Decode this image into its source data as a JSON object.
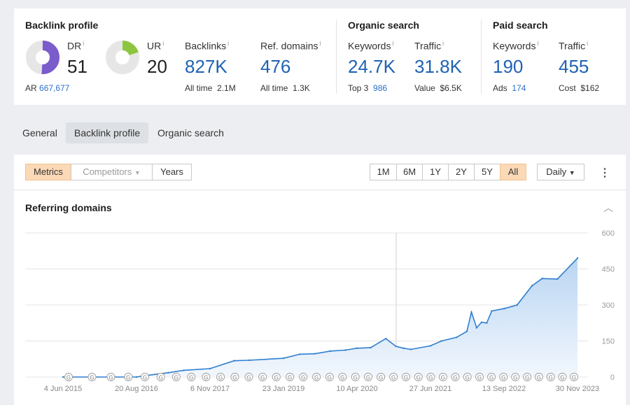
{
  "metrics": {
    "backlink_profile": {
      "title": "Backlink profile",
      "dr": {
        "label": "DR",
        "info": "i",
        "value": "51"
      },
      "ur": {
        "label": "UR",
        "info": "i",
        "value": "20"
      },
      "ar": {
        "label": "AR",
        "value": "667,677"
      },
      "backlinks": {
        "label": "Backlinks",
        "info": "i",
        "value": "827K",
        "sub_label": "All time",
        "sub_value": "2.1M"
      },
      "ref_domains": {
        "label": "Ref. domains",
        "info": "i",
        "value": "476",
        "sub_label": "All time",
        "sub_value": "1.3K"
      }
    },
    "organic_search": {
      "title": "Organic search",
      "keywords": {
        "label": "Keywords",
        "info": "i",
        "value": "24.7K",
        "sub_label": "Top 3",
        "sub_value": "986"
      },
      "traffic": {
        "label": "Traffic",
        "info": "i",
        "value": "31.8K",
        "sub_label": "Value",
        "sub_value": "$6.5K"
      }
    },
    "paid_search": {
      "title": "Paid search",
      "keywords": {
        "label": "Keywords",
        "info": "i",
        "value": "190",
        "sub_label": "Ads",
        "sub_value": "174"
      },
      "traffic": {
        "label": "Traffic",
        "info": "i",
        "value": "455",
        "sub_label": "Cost",
        "sub_value": "$162"
      }
    }
  },
  "donuts": {
    "dr_fraction": 0.51,
    "ur_fraction": 0.2,
    "dr_color": "#7a5ccc",
    "ur_color": "#8cc63f",
    "track_color": "#e6e6e6"
  },
  "tabs": [
    "General",
    "Backlink profile",
    "Organic search"
  ],
  "active_tab": 1,
  "toolbar": {
    "metrics": "Metrics",
    "competitors": "Competitors",
    "years": "Years",
    "ranges": [
      "1M",
      "6M",
      "1Y",
      "2Y",
      "5Y",
      "All"
    ],
    "active_range": "All",
    "interval": "Daily"
  },
  "chart_title": "Referring domains",
  "chart_data": {
    "type": "area",
    "x_ticks": [
      "4 Jun 2015",
      "20 Aug 2016",
      "6 Nov 2017",
      "23 Jan 2019",
      "10 Apr 2020",
      "27 Jun 2021",
      "13 Sep 2022",
      "30 Nov 2023"
    ],
    "y_ticks": [
      "600",
      "450",
      "300",
      "150",
      "0"
    ],
    "ylim": [
      0,
      600
    ],
    "grid": true,
    "color": "#2f7fd0",
    "series": [
      {
        "x": [
          "2015-06-04",
          "2016-08-20",
          "2016-10-01",
          "2017-03-01",
          "2017-06-01",
          "2017-11-06",
          "2018-04-01",
          "2018-07-01",
          "2019-01-23",
          "2019-05-01",
          "2019-08-01",
          "2019-11-01",
          "2020-02-01",
          "2020-04-10",
          "2020-07-01",
          "2020-10-01",
          "2020-12-01",
          "2021-01-15",
          "2021-03-01",
          "2021-06-27",
          "2021-09-01",
          "2021-12-01",
          "2022-02-01",
          "2022-03-01",
          "2022-04-01",
          "2022-05-01",
          "2022-06-01",
          "2022-07-01",
          "2022-09-13",
          "2022-12-01",
          "2023-03-01",
          "2023-05-01",
          "2023-08-01",
          "2023-11-30"
        ],
        "values": [
          0,
          0,
          5,
          18,
          28,
          35,
          68,
          70,
          78,
          95,
          97,
          108,
          112,
          120,
          122,
          160,
          128,
          120,
          115,
          130,
          150,
          165,
          190,
          270,
          205,
          228,
          225,
          275,
          285,
          300,
          380,
          410,
          408,
          495
        ]
      }
    ]
  },
  "event_markers": {
    "letter": "G",
    "count": 38
  }
}
